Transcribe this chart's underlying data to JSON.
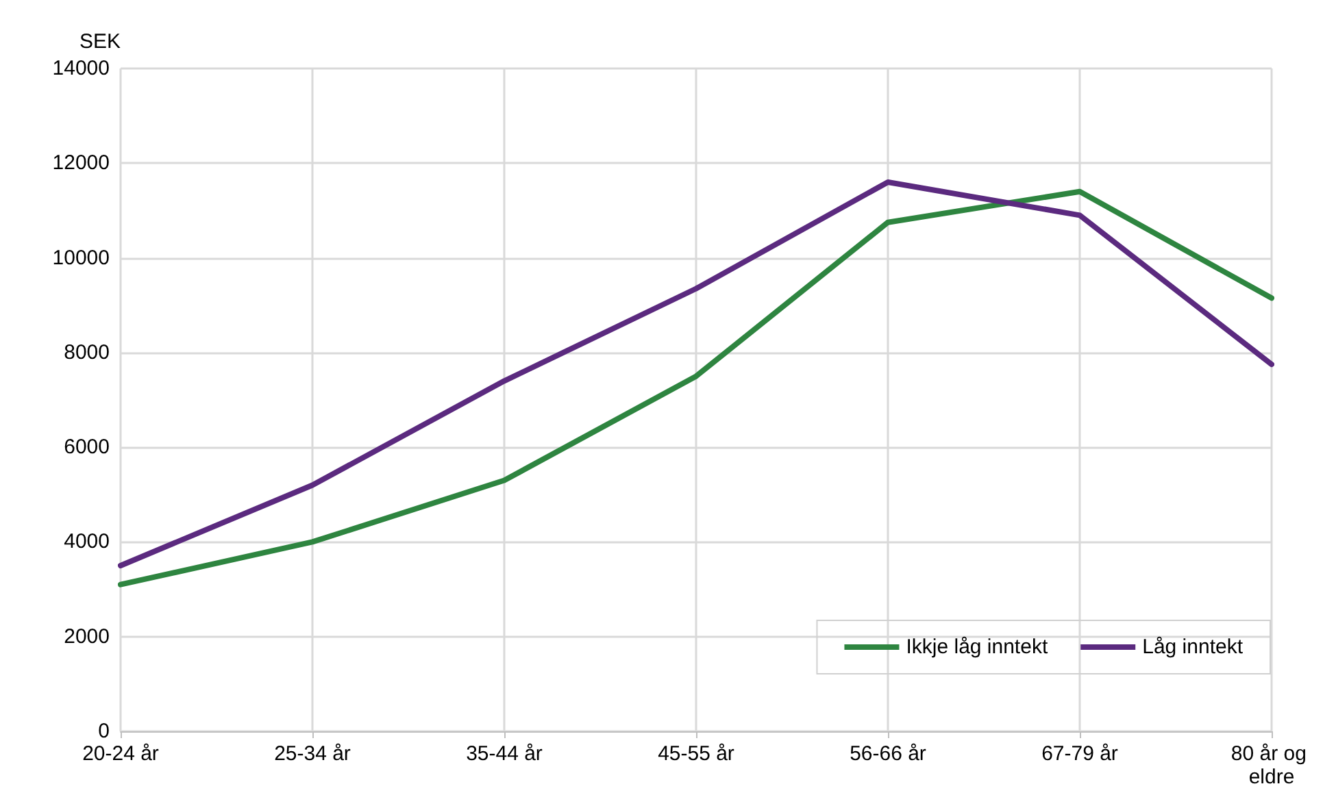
{
  "chart_data": {
    "type": "line",
    "ylabel": "SEK",
    "categories": [
      "20-24 år",
      "25-34 år",
      "35-44 år",
      "45-55 år",
      "56-66 år",
      "67-79 år",
      "80 år og eldre"
    ],
    "series": [
      {
        "name": "Ikkje låg inntekt",
        "color": "#2e8540",
        "values": [
          3100,
          4000,
          5300,
          7500,
          10750,
          11400,
          9150
        ]
      },
      {
        "name": "Låg inntekt",
        "color": "#5b2a7f",
        "values": [
          3500,
          5200,
          7400,
          9350,
          11600,
          10900,
          7750
        ]
      }
    ],
    "ylim": [
      0,
      14000
    ],
    "yticks": [
      0,
      2000,
      4000,
      6000,
      8000,
      10000,
      12000,
      14000
    ],
    "grid": true,
    "legend": "bottom right",
    "marker": "none",
    "line_style": "solid"
  }
}
